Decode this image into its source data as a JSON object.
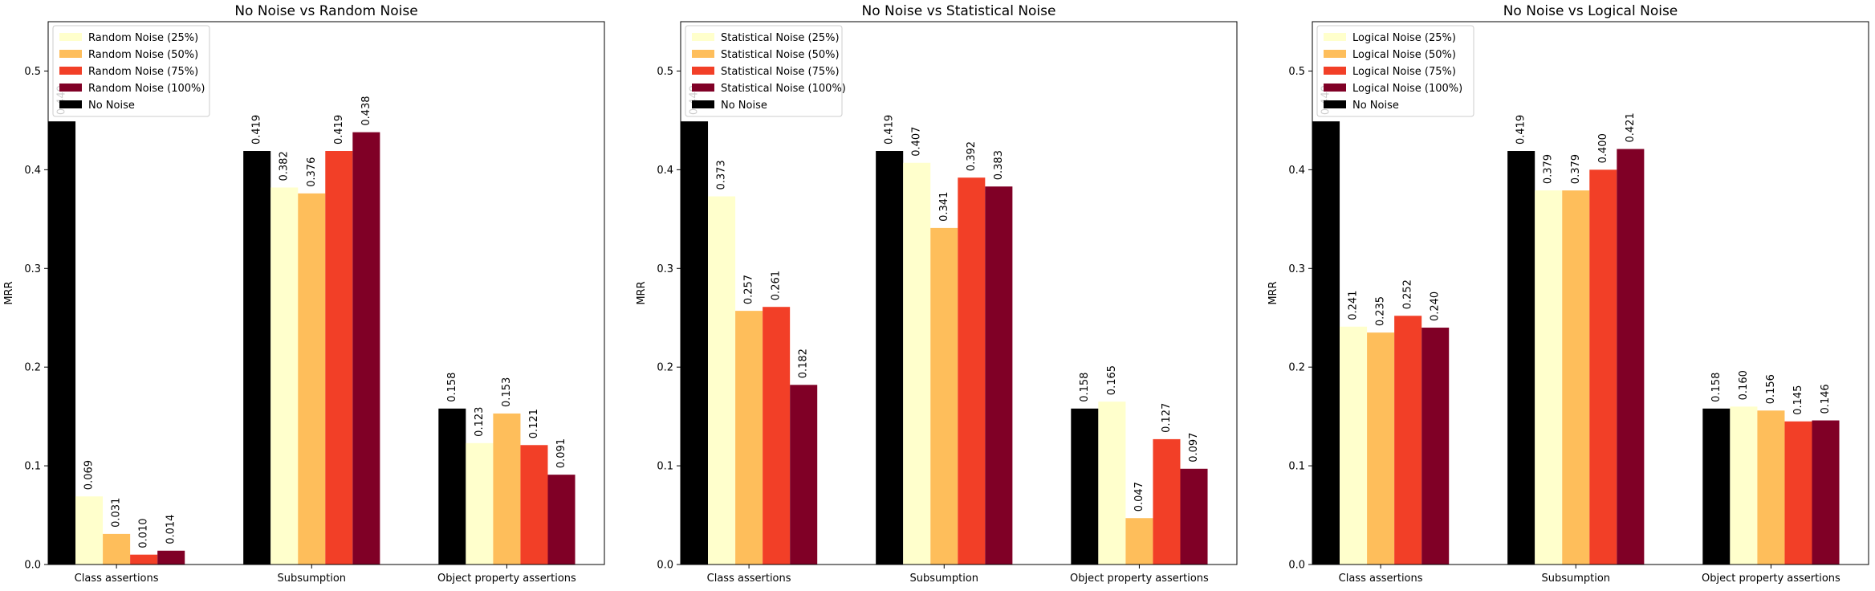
{
  "colors": {
    "no_noise": "#000000",
    "noise_25": "#FFFFCC",
    "noise_50": "#FEBE5B",
    "noise_75": "#F23F27",
    "noise_100": "#800026"
  },
  "chart_data": [
    {
      "type": "bar",
      "title": "No Noise vs Random Noise",
      "ylabel": "MRR",
      "ylim": [
        0,
        0.55
      ],
      "yticks": [
        "0.0",
        "0.1",
        "0.2",
        "0.3",
        "0.4",
        "0.5"
      ],
      "grid": false,
      "legend": "top-left",
      "categories": [
        "Class assertions",
        "Subsumption",
        "Object property assertions"
      ],
      "series": [
        {
          "name": "No Noise",
          "values": [
            0.449,
            0.419,
            0.158
          ],
          "labels": [
            "0.449",
            "0.419",
            "0.158"
          ]
        },
        {
          "name": "Random Noise (25%)",
          "values": [
            0.069,
            0.382,
            0.123
          ],
          "labels": [
            "0.069",
            "0.382",
            "0.123"
          ]
        },
        {
          "name": "Random Noise (50%)",
          "values": [
            0.031,
            0.376,
            0.153
          ],
          "labels": [
            "0.031",
            "0.376",
            "0.153"
          ]
        },
        {
          "name": "Random Noise (75%)",
          "values": [
            0.01,
            0.419,
            0.121
          ],
          "labels": [
            "0.010",
            "0.419",
            "0.121"
          ]
        },
        {
          "name": "Random Noise (100%)",
          "values": [
            0.014,
            0.438,
            0.091
          ],
          "labels": [
            "0.014",
            "0.438",
            "0.091"
          ]
        }
      ]
    },
    {
      "type": "bar",
      "title": "No Noise vs Statistical Noise",
      "ylabel": "MRR",
      "ylim": [
        0,
        0.55
      ],
      "yticks": [
        "0.0",
        "0.1",
        "0.2",
        "0.3",
        "0.4",
        "0.5"
      ],
      "grid": false,
      "legend": "top-left",
      "categories": [
        "Class assertions",
        "Subsumption",
        "Object property assertions"
      ],
      "series": [
        {
          "name": "No Noise",
          "values": [
            0.449,
            0.419,
            0.158
          ],
          "labels": [
            "0.449",
            "0.419",
            "0.158"
          ]
        },
        {
          "name": "Statistical Noise (25%)",
          "values": [
            0.373,
            0.407,
            0.165
          ],
          "labels": [
            "0.373",
            "0.407",
            "0.165"
          ]
        },
        {
          "name": "Statistical Noise (50%)",
          "values": [
            0.257,
            0.341,
            0.047
          ],
          "labels": [
            "0.257",
            "0.341",
            "0.047"
          ]
        },
        {
          "name": "Statistical Noise (75%)",
          "values": [
            0.261,
            0.392,
            0.127
          ],
          "labels": [
            "0.261",
            "0.392",
            "0.127"
          ]
        },
        {
          "name": "Statistical Noise (100%)",
          "values": [
            0.182,
            0.383,
            0.097
          ],
          "labels": [
            "0.182",
            "0.383",
            "0.097"
          ]
        }
      ]
    },
    {
      "type": "bar",
      "title": "No Noise vs Logical Noise",
      "ylabel": "MRR",
      "ylim": [
        0,
        0.55
      ],
      "yticks": [
        "0.0",
        "0.1",
        "0.2",
        "0.3",
        "0.4",
        "0.5"
      ],
      "grid": false,
      "legend": "top-left",
      "categories": [
        "Class assertions",
        "Subsumption",
        "Object property assertions"
      ],
      "series": [
        {
          "name": "No Noise",
          "values": [
            0.449,
            0.419,
            0.158
          ],
          "labels": [
            "0.449",
            "0.419",
            "0.158"
          ]
        },
        {
          "name": "Logical Noise (25%)",
          "values": [
            0.241,
            0.379,
            0.16
          ],
          "labels": [
            "0.241",
            "0.379",
            "0.160"
          ]
        },
        {
          "name": "Logical Noise (50%)",
          "values": [
            0.235,
            0.379,
            0.156
          ],
          "labels": [
            "0.235",
            "0.379",
            "0.156"
          ]
        },
        {
          "name": "Logical Noise (75%)",
          "values": [
            0.252,
            0.4,
            0.145
          ],
          "labels": [
            "0.252",
            "0.400",
            "0.145"
          ]
        },
        {
          "name": "Logical Noise (100%)",
          "values": [
            0.24,
            0.421,
            0.146
          ],
          "labels": [
            "0.240",
            "0.421",
            "0.146"
          ]
        }
      ]
    }
  ]
}
